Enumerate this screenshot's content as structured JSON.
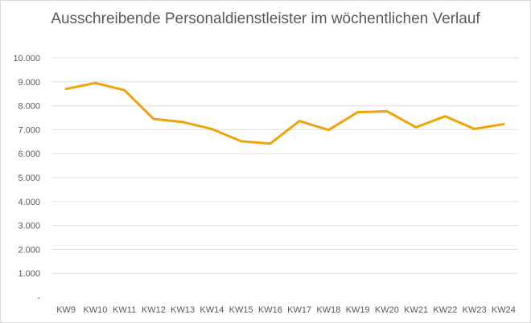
{
  "chart_data": {
    "type": "line",
    "title": "Ausschreibende Personaldienstleister im wöchentlichen Verlauf",
    "categories": [
      "KW9",
      "KW10",
      "KW11",
      "KW12",
      "KW13",
      "KW14",
      "KW15",
      "KW16",
      "KW17",
      "KW18",
      "KW19",
      "KW20",
      "KW21",
      "KW22",
      "KW23",
      "KW24"
    ],
    "series": [
      {
        "values": [
          8700,
          8950,
          8650,
          7450,
          7320,
          7030,
          6520,
          6420,
          7360,
          6990,
          7730,
          7770,
          7100,
          7560,
          7030,
          7230
        ]
      }
    ],
    "y_ticks": [
      "-",
      "1.000",
      "2.000",
      "3.000",
      "4.000",
      "5.000",
      "6.000",
      "7.000",
      "8.000",
      "9.000",
      "10.000"
    ],
    "ylim": [
      0,
      10000
    ],
    "grid": true,
    "legend": "none",
    "colors": {
      "series": "#f0a30a",
      "grid": "#e0e0e0",
      "text": "#595959"
    }
  }
}
